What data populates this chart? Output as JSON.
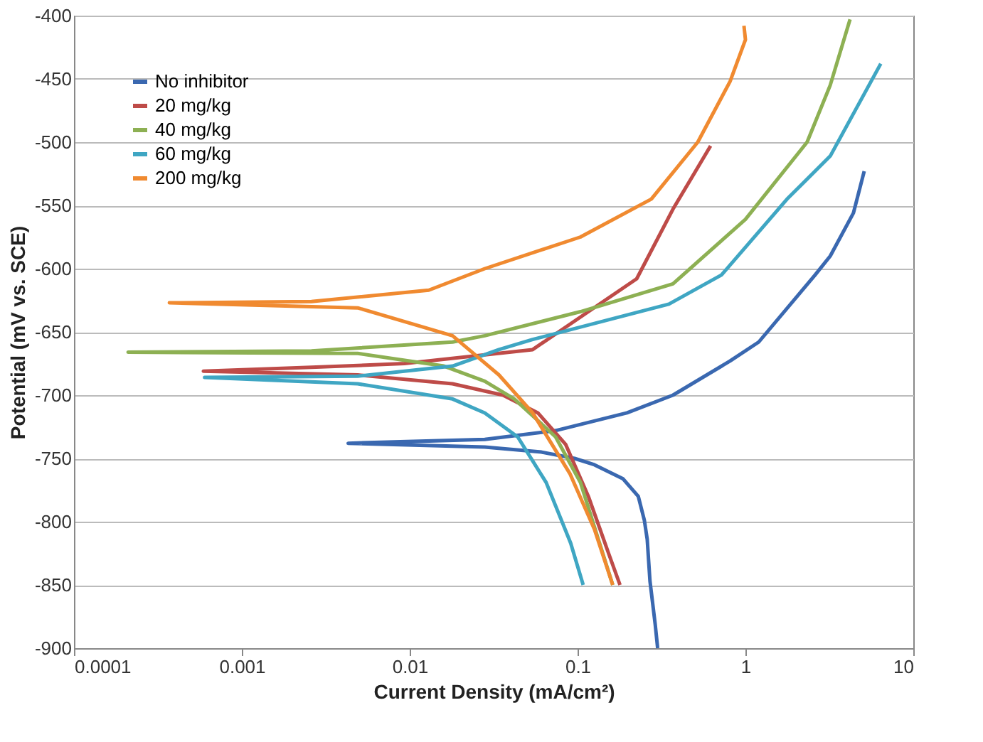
{
  "chart_data": {
    "type": "line",
    "xlabel": "Current Density (mA/cm²)",
    "ylabel": "Potential (mV vs. SCE)",
    "log": "x",
    "grid": "y",
    "legend": "top left",
    "marker": "none",
    "line_style": "solid",
    "xlim": [
      0.0001,
      10
    ],
    "xticks": [
      0.0001,
      0.001,
      0.01,
      0.1,
      1,
      10
    ],
    "ylim": [
      -900,
      -400
    ],
    "yticks": [
      -900,
      -850,
      -800,
      -750,
      -700,
      -650,
      -600,
      -550,
      -500,
      -450,
      -400
    ],
    "series": [
      {
        "name": "No inhibitor",
        "color": "#3a68b0",
        "x": [
          0.3,
          0.29,
          0.27,
          0.26,
          0.25,
          0.23,
          0.186,
          0.126,
          0.096,
          0.061,
          0.028,
          0.0043,
          0.028,
          0.074,
          0.197,
          0.37,
          0.81,
          1.2,
          2.6,
          3.2,
          4.4,
          5.1
        ],
        "values": [
          -900,
          -881,
          -847,
          -814,
          -799,
          -780,
          -766,
          -755,
          -750,
          -745,
          -741,
          -738,
          -735,
          -728,
          -714,
          -700,
          -673,
          -658,
          -605,
          -590,
          -556,
          -523
        ]
      },
      {
        "name": "20 mg/kg",
        "color": "#be4b48",
        "x": [
          0.179,
          0.153,
          0.116,
          0.085,
          0.058,
          0.036,
          0.018,
          0.0049,
          0.00059,
          0.0026,
          0.0093,
          0.054,
          0.116,
          0.225,
          0.37,
          0.62
        ],
        "values": [
          -850,
          -825,
          -780,
          -739,
          -714,
          -700,
          -691,
          -684,
          -681,
          -678,
          -675,
          -664,
          -634,
          -608,
          -553,
          -503
        ]
      },
      {
        "name": "40 mg/kg",
        "color": "#8db053",
        "x": [
          0.162,
          0.133,
          0.104,
          0.074,
          0.042,
          0.028,
          0.016,
          0.0049,
          0.00021,
          0.0026,
          0.018,
          0.028,
          0.104,
          0.37,
          1.0,
          2.33,
          3.2,
          4.2
        ],
        "values": [
          -850,
          -814,
          -769,
          -733,
          -703,
          -689,
          -677,
          -667,
          -666,
          -665,
          -658,
          -653,
          -634,
          -612,
          -561,
          -500,
          -455,
          -403
        ]
      },
      {
        "name": "60 mg/kg",
        "color": "#3fa6c3",
        "x": [
          0.108,
          0.091,
          0.065,
          0.044,
          0.028,
          0.018,
          0.0049,
          0.0006,
          0.0049,
          0.018,
          0.034,
          0.054,
          0.35,
          0.72,
          1.77,
          3.2,
          6.4
        ],
        "values": [
          -850,
          -817,
          -769,
          -733,
          -714,
          -703,
          -691,
          -686,
          -685,
          -677,
          -664,
          -656,
          -628,
          -605,
          -545,
          -511,
          -438
        ]
      },
      {
        "name": "200 mg/kg",
        "color": "#f08a30",
        "x": [
          0.162,
          0.126,
          0.09,
          0.054,
          0.034,
          0.018,
          0.0049,
          0.00037,
          0.0026,
          0.013,
          0.028,
          0.104,
          0.275,
          0.52,
          0.81,
          1.0,
          0.98
        ],
        "values": [
          -850,
          -806,
          -762,
          -714,
          -684,
          -653,
          -631,
          -627,
          -626,
          -617,
          -600,
          -575,
          -545,
          -500,
          -452,
          -419,
          -408
        ]
      }
    ]
  }
}
